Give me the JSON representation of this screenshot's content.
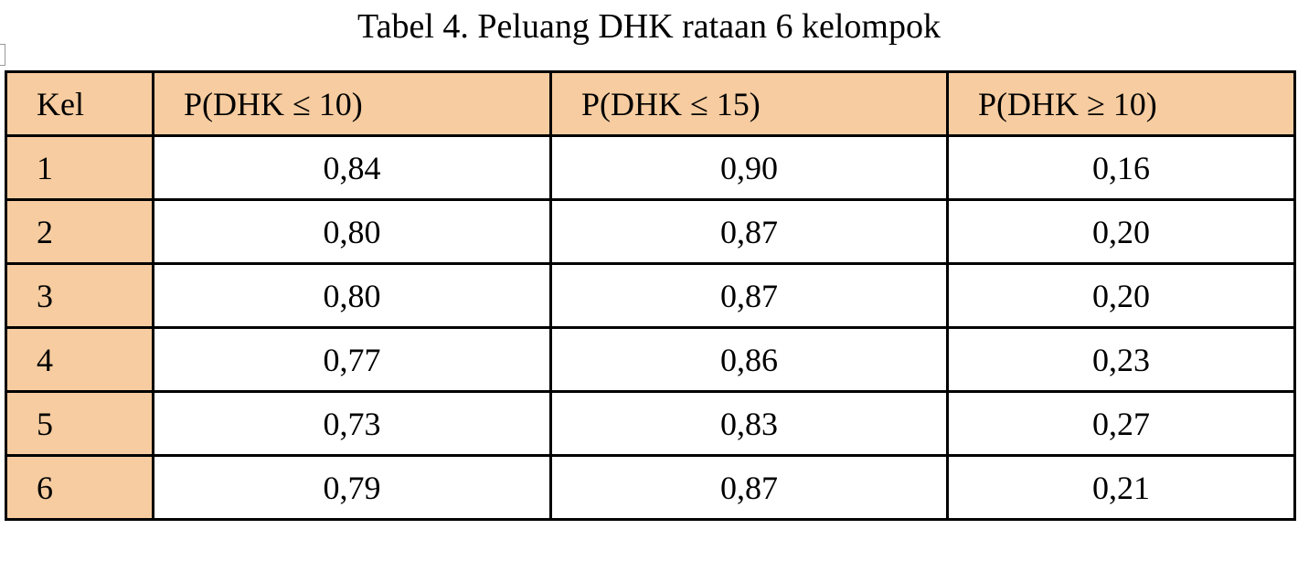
{
  "title": "Tabel 4. Peluang DHK rataan 6 kelompok",
  "table": {
    "header": [
      "Kel",
      "P(DHK ≤ 10)",
      "P(DHK ≤ 15)",
      "P(DHK ≥ 10)"
    ],
    "rows": [
      [
        "1",
        "0,84",
        "0,90",
        "0,16"
      ],
      [
        "2",
        "0,80",
        "0,87",
        "0,20"
      ],
      [
        "3",
        "0,80",
        "0,87",
        "0,20"
      ],
      [
        "4",
        "0,77",
        "0,86",
        "0,23"
      ],
      [
        "5",
        "0,73",
        "0,83",
        "0,27"
      ],
      [
        "6",
        "0,79",
        "0,87",
        "0,21"
      ]
    ]
  }
}
